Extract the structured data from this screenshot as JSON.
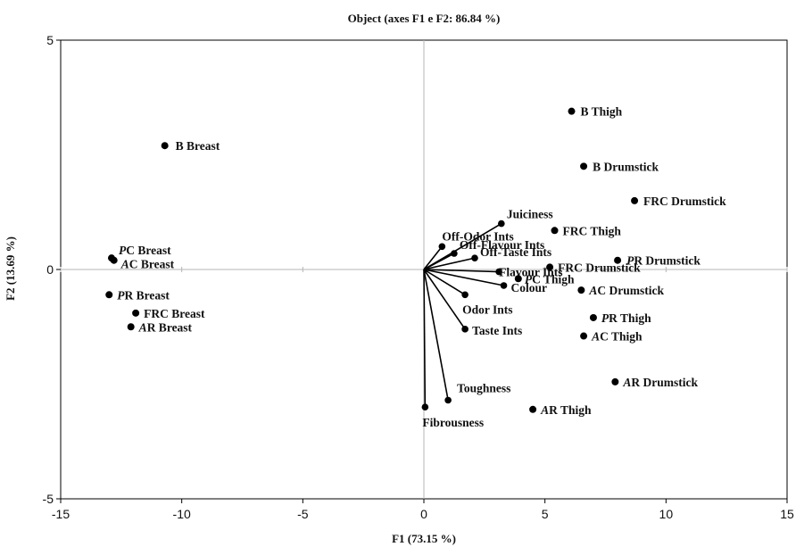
{
  "chart_data": {
    "type": "scatter",
    "title": "Object (axes F1 e F2: 86.84 %)",
    "xlabel": "F1 (73.15 %)",
    "ylabel": "F2 (13.69 %)",
    "xlim": [
      -15,
      15
    ],
    "ylim": [
      -5,
      5
    ],
    "xticks": [
      "-15",
      "-10",
      "-5",
      "0",
      "5",
      "10",
      "15"
    ],
    "yticks": [
      "-5",
      "0",
      "5"
    ],
    "grid": false,
    "zero_lines": true,
    "objects": [
      {
        "pre": "",
        "label": "B Breast",
        "x": -10.7,
        "y": 2.7
      },
      {
        "pre": "P",
        "label": "C Breast",
        "x": -12.9,
        "y": 0.25
      },
      {
        "pre": "A",
        "label": "C Breast",
        "x": -12.8,
        "y": 0.2
      },
      {
        "pre": "P",
        "label": "R Breast",
        "x": -13.0,
        "y": -0.55
      },
      {
        "pre": "",
        "label": "FRC Breast",
        "x": -11.9,
        "y": -0.95
      },
      {
        "pre": "A",
        "label": "R Breast",
        "x": -12.1,
        "y": -1.25
      },
      {
        "pre": "",
        "label": "B Thigh",
        "x": 6.1,
        "y": 3.45
      },
      {
        "pre": "",
        "label": "B Drumstick",
        "x": 6.6,
        "y": 2.25
      },
      {
        "pre": "",
        "label": "FRC Drumstick",
        "x": 8.7,
        "y": 1.5
      },
      {
        "pre": "",
        "label": "FRC Thigh",
        "x": 5.4,
        "y": 0.85
      },
      {
        "pre": "P",
        "label": "R Drumstick",
        "x": 8.0,
        "y": 0.2
      },
      {
        "pre": "",
        "label": "FRC Drumstick",
        "x": 5.2,
        "y": 0.05
      },
      {
        "pre": "P",
        "label": "C Thigh",
        "x": 3.9,
        "y": -0.2
      },
      {
        "pre": "A",
        "label": "C Drumstick",
        "x": 6.5,
        "y": -0.45
      },
      {
        "pre": "P",
        "label": "R Thigh",
        "x": 7.0,
        "y": -1.05
      },
      {
        "pre": "A",
        "label": "C Thigh",
        "x": 6.6,
        "y": -1.45
      },
      {
        "pre": "A",
        "label": "R Drumstick",
        "x": 7.9,
        "y": -2.45
      },
      {
        "pre": "A",
        "label": "R Thigh",
        "x": 4.5,
        "y": -3.05
      }
    ],
    "variables": [
      {
        "label": "Juiciness",
        "x": 3.2,
        "y": 1.0
      },
      {
        "label": "Off-Odor Ints",
        "x": 0.75,
        "y": 0.5
      },
      {
        "label": "Off-Flavour Ints",
        "x": 1.25,
        "y": 0.35
      },
      {
        "label": "Off-Taste Ints",
        "x": 2.1,
        "y": 0.25
      },
      {
        "label": "Flavour Ints",
        "x": 3.1,
        "y": -0.05
      },
      {
        "label": "Colour",
        "x": 3.3,
        "y": -0.35
      },
      {
        "label": "Odor Ints",
        "x": 1.7,
        "y": -0.55
      },
      {
        "label": "Taste Ints",
        "x": 1.7,
        "y": -1.3
      },
      {
        "label": "Toughness",
        "x": 1.0,
        "y": -2.85
      },
      {
        "label": "Fibrousness",
        "x": 0.05,
        "y": -3.0
      }
    ]
  }
}
